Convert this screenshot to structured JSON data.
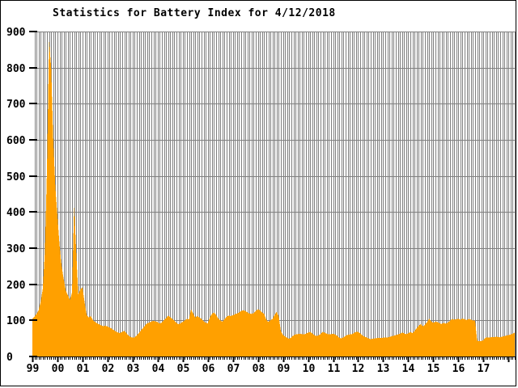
{
  "title": "Statistics for Battery Index for 4/12/2018",
  "colors": {
    "fill": "#FFA000",
    "grid": "#808080",
    "axis": "#000000",
    "background": "#FFFFFF",
    "text": "#000000"
  },
  "chart_data": {
    "type": "area",
    "title": "Statistics for Battery Index for 4/12/2018",
    "xlabel": "",
    "ylabel": "",
    "x_start": {
      "year": 1999,
      "month": 1
    },
    "x_end": {
      "year": 2018,
      "month": 4
    },
    "x_interval": "monthly",
    "x_tick_labels": [
      "99",
      "00",
      "01",
      "02",
      "03",
      "04",
      "05",
      "06",
      "07",
      "08",
      "09",
      "10",
      "11",
      "12",
      "13",
      "14",
      "15",
      "16",
      "17"
    ],
    "y_ticks": [
      0,
      100,
      200,
      300,
      400,
      500,
      600,
      700,
      800,
      900
    ],
    "ylim": [
      0,
      900
    ],
    "grid": "both",
    "legend": "none",
    "series": [
      {
        "name": "Battery Index",
        "values": [
          105,
          110,
          118,
          128,
          152,
          188,
          290,
          520,
          875,
          800,
          600,
          470,
          390,
          310,
          250,
          215,
          182,
          170,
          156,
          178,
          420,
          290,
          172,
          186,
          192,
          150,
          115,
          108,
          112,
          100,
          96,
          92,
          89,
          86,
          84,
          85,
          83,
          80,
          77,
          73,
          69,
          66,
          65,
          68,
          71,
          65,
          58,
          54,
          52,
          53,
          58,
          65,
          72,
          79,
          86,
          92,
          94,
          97,
          99,
          97,
          95,
          91,
          94,
          100,
          106,
          113,
          109,
          104,
          99,
          93,
          89,
          92,
          96,
          100,
          104,
          103,
          131,
          119,
          108,
          112,
          108,
          104,
          98,
          93,
          92,
          108,
          118,
          122,
          115,
          105,
          100,
          96,
          103,
          110,
          113,
          112,
          114,
          117,
          119,
          122,
          126,
          128,
          126,
          122,
          119,
          118,
          120,
          126,
          131,
          128,
          122,
          118,
          102,
          96,
          100,
          104,
          115,
          124,
          110,
          70,
          60,
          55,
          52,
          49,
          53,
          58,
          61,
          62,
          63,
          62,
          61,
          63,
          66,
          68,
          64,
          59,
          57,
          58,
          62,
          68,
          66,
          63,
          61,
          62,
          63,
          61,
          57,
          52,
          50,
          53,
          57,
          60,
          61,
          62,
          65,
          68,
          68,
          64,
          58,
          55,
          53,
          50,
          48,
          49,
          50,
          51,
          52,
          52,
          52,
          53,
          52,
          54,
          56,
          57,
          59,
          61,
          63,
          66,
          64,
          62,
          64,
          68,
          65,
          70,
          78,
          85,
          90,
          83,
          88,
          95,
          105,
          97,
          93,
          97,
          95,
          92,
          90,
          93,
          91,
          94,
          99,
          104,
          102,
          103,
          104,
          102,
          105,
          103,
          101,
          104,
          102,
          100,
          99,
          44,
          42,
          43,
          45,
          52,
          53,
          52,
          54,
          53,
          55,
          54,
          53,
          55,
          56,
          58,
          59,
          61,
          63,
          66
        ]
      }
    ]
  }
}
